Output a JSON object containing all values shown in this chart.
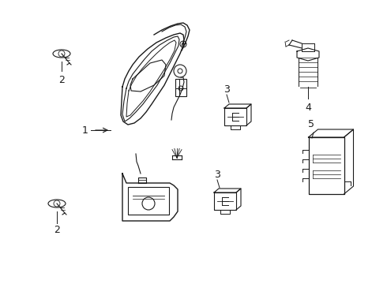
{
  "bg_color": "#ffffff",
  "line_color": "#1a1a1a",
  "fig_width": 4.9,
  "fig_height": 3.6,
  "dpi": 100,
  "label_fontsize": 9
}
